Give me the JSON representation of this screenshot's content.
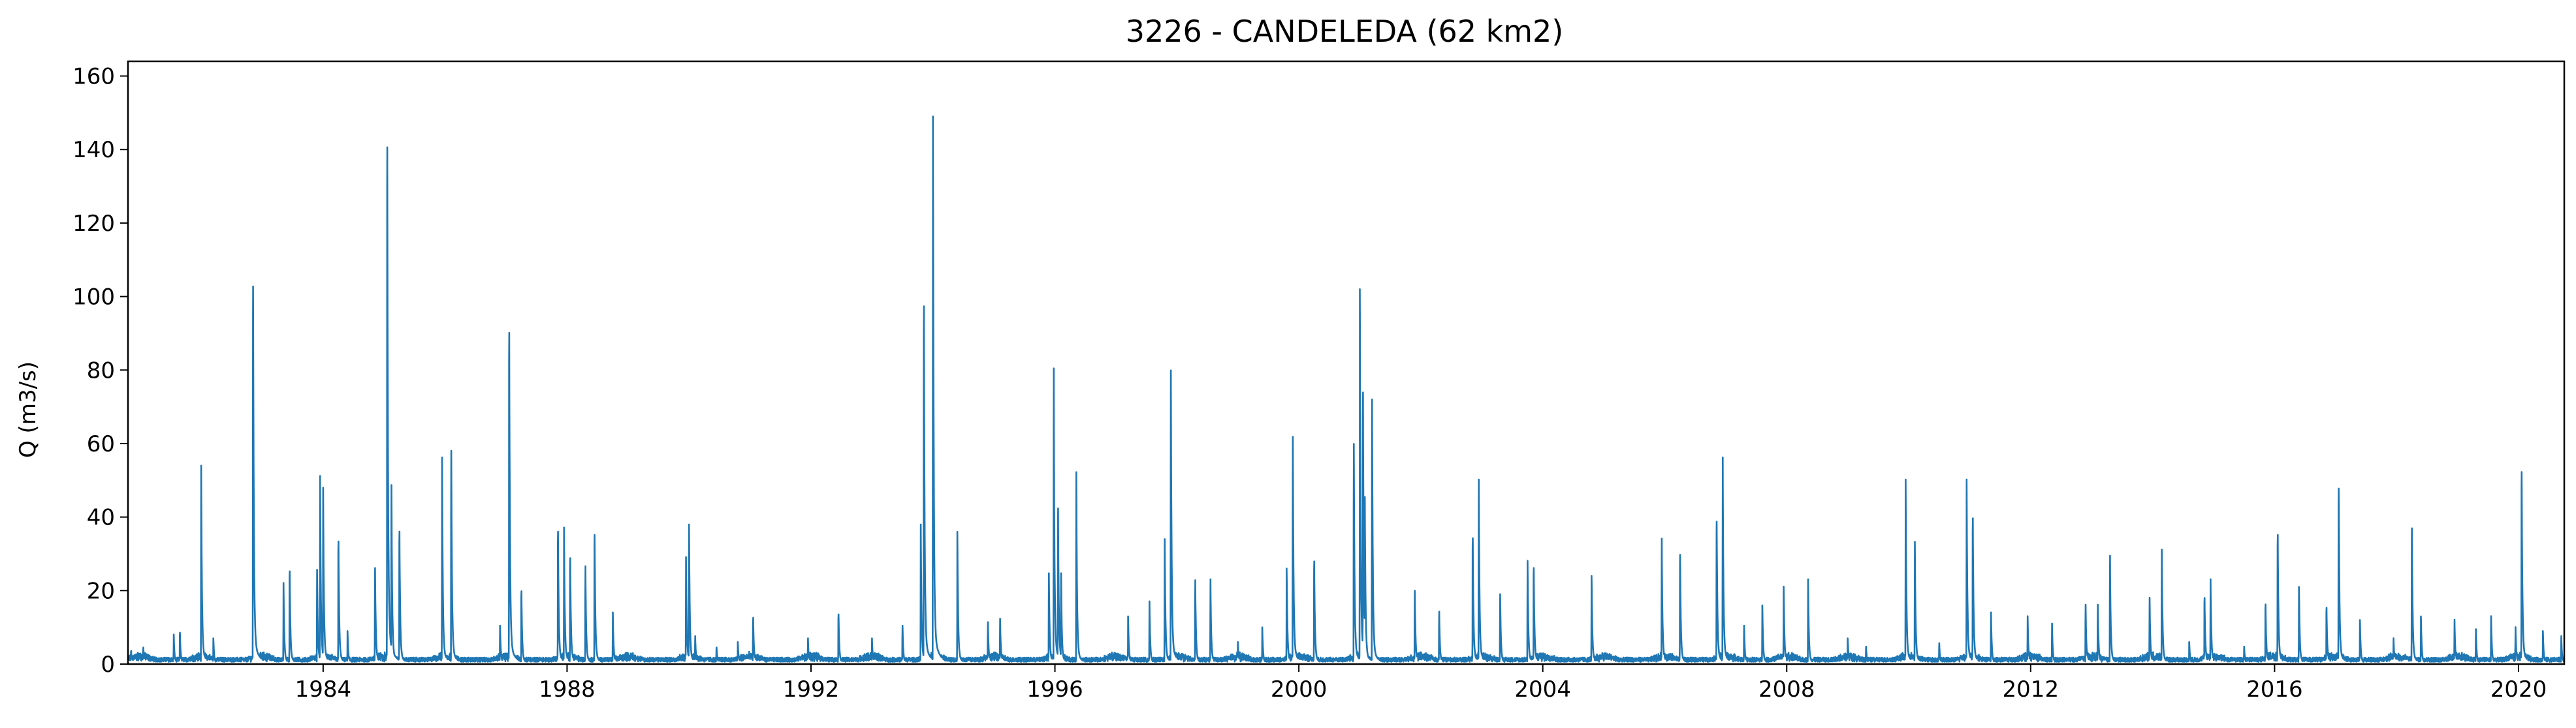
{
  "chart_data": {
    "type": "line",
    "title": "3226 - CANDELEDA (62 km2)",
    "xlabel": "",
    "ylabel": "Q (m3/s)",
    "xlim": [
      1980.8,
      2020.75
    ],
    "ylim": [
      0,
      164
    ],
    "x_ticks": [
      "1984",
      "1988",
      "1992",
      "1996",
      "2000",
      "2004",
      "2008",
      "2012",
      "2016",
      "2020"
    ],
    "y_ticks": [
      "0",
      "20",
      "40",
      "60",
      "80",
      "100",
      "120",
      "140",
      "160"
    ],
    "grid": false,
    "legend": "none",
    "series_color": "#1f77b4",
    "baseline": 1.2,
    "events": [
      [
        1980.85,
        4
      ],
      [
        1981.05,
        5
      ],
      [
        1981.55,
        8
      ],
      [
        1981.65,
        9.5
      ],
      [
        1982.0,
        54
      ],
      [
        1982.2,
        7
      ],
      [
        1982.85,
        114
      ],
      [
        1983.35,
        22
      ],
      [
        1983.45,
        28
      ],
      [
        1983.9,
        27
      ],
      [
        1983.95,
        51
      ],
      [
        1984.0,
        48
      ],
      [
        1984.25,
        37
      ],
      [
        1984.4,
        9
      ],
      [
        1984.85,
        29
      ],
      [
        1985.05,
        156
      ],
      [
        1985.12,
        48
      ],
      [
        1985.25,
        40
      ],
      [
        1985.95,
        56
      ],
      [
        1986.1,
        61
      ],
      [
        1986.9,
        11
      ],
      [
        1987.05,
        100
      ],
      [
        1987.25,
        22
      ],
      [
        1987.85,
        40
      ],
      [
        1987.95,
        37
      ],
      [
        1988.05,
        32
      ],
      [
        1988.3,
        28
      ],
      [
        1988.45,
        39
      ],
      [
        1988.75,
        14
      ],
      [
        1989.95,
        29
      ],
      [
        1990.0,
        38
      ],
      [
        1990.1,
        8
      ],
      [
        1990.45,
        5
      ],
      [
        1990.8,
        6
      ],
      [
        1991.05,
        14
      ],
      [
        1991.95,
        7
      ],
      [
        1992.45,
        15
      ],
      [
        1993.0,
        7
      ],
      [
        1993.5,
        11
      ],
      [
        1993.8,
        38
      ],
      [
        1993.85,
        108
      ],
      [
        1994.0,
        149
      ],
      [
        1994.4,
        36
      ],
      [
        1994.9,
        12
      ],
      [
        1995.1,
        13
      ],
      [
        1995.9,
        26
      ],
      [
        1995.98,
        81
      ],
      [
        1996.05,
        47
      ],
      [
        1996.1,
        26
      ],
      [
        1996.35,
        52
      ],
      [
        1997.2,
        13
      ],
      [
        1997.55,
        17
      ],
      [
        1997.8,
        34
      ],
      [
        1997.9,
        84
      ],
      [
        1998.3,
        24
      ],
      [
        1998.55,
        23
      ],
      [
        1999.0,
        6
      ],
      [
        1999.4,
        10
      ],
      [
        1999.8,
        26
      ],
      [
        1999.9,
        65
      ],
      [
        2000.25,
        31
      ],
      [
        2000.9,
        63
      ],
      [
        2001.0,
        102
      ],
      [
        2001.05,
        82
      ],
      [
        2001.08,
        51
      ],
      [
        2001.2,
        72
      ],
      [
        2001.9,
        21
      ],
      [
        2002.3,
        15
      ],
      [
        2002.85,
        38
      ],
      [
        2002.95,
        50
      ],
      [
        2003.3,
        20
      ],
      [
        2003.75,
        28
      ],
      [
        2003.85,
        29
      ],
      [
        2004.8,
        24
      ],
      [
        2005.95,
        34
      ],
      [
        2006.25,
        33
      ],
      [
        2006.85,
        43
      ],
      [
        2006.95,
        56
      ],
      [
        2007.3,
        11
      ],
      [
        2007.6,
        16
      ],
      [
        2007.95,
        21
      ],
      [
        2008.35,
        23
      ],
      [
        2009.0,
        7
      ],
      [
        2009.3,
        5
      ],
      [
        2009.95,
        50
      ],
      [
        2010.1,
        35
      ],
      [
        2010.5,
        6
      ],
      [
        2010.95,
        50
      ],
      [
        2011.05,
        44
      ],
      [
        2011.35,
        14
      ],
      [
        2011.95,
        13
      ],
      [
        2012.35,
        11
      ],
      [
        2012.9,
        17
      ],
      [
        2013.1,
        17
      ],
      [
        2013.3,
        31
      ],
      [
        2013.95,
        18
      ],
      [
        2014.15,
        31
      ],
      [
        2014.6,
        6
      ],
      [
        2014.85,
        20
      ],
      [
        2014.95,
        23
      ],
      [
        2015.5,
        5
      ],
      [
        2015.85,
        18
      ],
      [
        2016.05,
        39
      ],
      [
        2016.4,
        21
      ],
      [
        2016.85,
        17
      ],
      [
        2017.05,
        53
      ],
      [
        2017.4,
        12
      ],
      [
        2017.95,
        7
      ],
      [
        2018.25,
        41
      ],
      [
        2018.4,
        13
      ],
      [
        2018.95,
        12
      ],
      [
        2019.3,
        10
      ],
      [
        2019.55,
        13
      ],
      [
        2019.95,
        10
      ],
      [
        2020.05,
        58
      ],
      [
        2020.4,
        9
      ],
      [
        2020.7,
        8
      ]
    ]
  }
}
